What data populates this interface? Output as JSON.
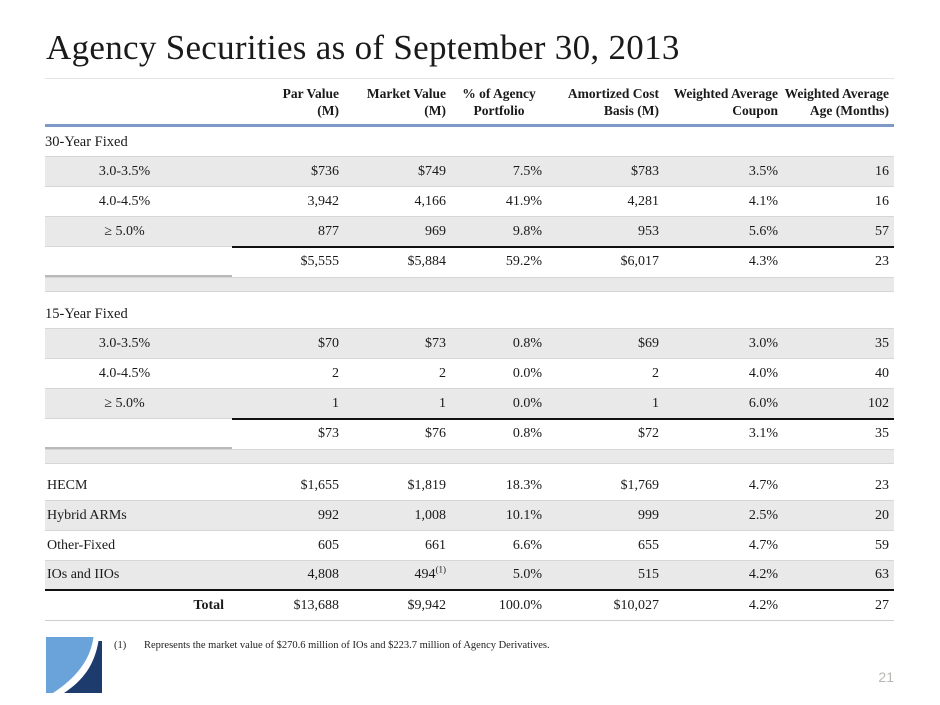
{
  "slide": {
    "title": "Agency Securities as of September 30, 2013",
    "page_number": "21",
    "footnote": {
      "marker": "(1)",
      "text": "Represents the market value of $270.6 million of IOs and $223.7 million of Agency Derivatives."
    }
  },
  "colors": {
    "header_rule": "#7d99c6",
    "row_shade": "#e9e9e9",
    "logo_light": "#69a3d9",
    "logo_dark": "#1d3c6d",
    "page_number_gray": "#b7b7b4"
  },
  "chart_data": {
    "type": "table",
    "title": "Agency Securities as of September 30, 2013",
    "headers": [
      "",
      "Par Value\n(M)",
      "Market Value\n(M)",
      "% of Agency\nPortfolio",
      "Amortized Cost\nBasis (M)",
      "Weighted Average\nCoupon",
      "Weighted Average\nAge (Months)"
    ],
    "rows": [
      {
        "type": "section",
        "label": "30-Year Fixed"
      },
      {
        "type": "data",
        "shade": true,
        "label": "3.0-3.5%",
        "label_align": "center",
        "cells": [
          "$736",
          "$749",
          "7.5%",
          "$783",
          "3.5%",
          "16"
        ]
      },
      {
        "type": "data",
        "shade": false,
        "label": "4.0-4.5%",
        "label_align": "center",
        "cells": [
          "3,942",
          "4,166",
          "41.9%",
          "4,281",
          "4.1%",
          "16"
        ]
      },
      {
        "type": "data",
        "shade": true,
        "label": "≥ 5.0%",
        "label_align": "center",
        "cells": [
          "877",
          "969",
          "9.8%",
          "953",
          "5.6%",
          "57"
        ],
        "rule": "black-values"
      },
      {
        "type": "subtotal",
        "label": "",
        "cells": [
          "$5,555",
          "$5,884",
          "59.2%",
          "$6,017",
          "4.3%",
          "23"
        ]
      },
      {
        "type": "spacer"
      },
      {
        "type": "section",
        "label": "15-Year Fixed"
      },
      {
        "type": "data",
        "shade": true,
        "label": "3.0-3.5%",
        "label_align": "center",
        "cells": [
          "$70",
          "$73",
          "0.8%",
          "$69",
          "3.0%",
          "35"
        ]
      },
      {
        "type": "data",
        "shade": false,
        "label": "4.0-4.5%",
        "label_align": "center",
        "cells": [
          "2",
          "2",
          "0.0%",
          "2",
          "4.0%",
          "40"
        ]
      },
      {
        "type": "data",
        "shade": true,
        "label": "≥ 5.0%",
        "label_align": "center",
        "cells": [
          "1",
          "1",
          "0.0%",
          "1",
          "6.0%",
          "102"
        ],
        "rule": "black-values"
      },
      {
        "type": "subtotal",
        "label": "",
        "cells": [
          "$73",
          "$76",
          "0.8%",
          "$72",
          "3.1%",
          "35"
        ]
      },
      {
        "type": "spacer"
      },
      {
        "type": "data",
        "shade": false,
        "label": "HECM",
        "label_align": "left",
        "cells": [
          "$1,655",
          "$1,819",
          "18.3%",
          "$1,769",
          "4.7%",
          "23"
        ]
      },
      {
        "type": "data",
        "shade": true,
        "label": "Hybrid ARMs",
        "label_align": "left",
        "cells": [
          "992",
          "1,008",
          "10.1%",
          "999",
          "2.5%",
          "20"
        ]
      },
      {
        "type": "data",
        "shade": false,
        "label": "Other-Fixed",
        "label_align": "left",
        "cells": [
          "605",
          "661",
          "6.6%",
          "655",
          "4.7%",
          "59"
        ]
      },
      {
        "type": "data",
        "shade": true,
        "label": "IOs and IIOs",
        "label_align": "left",
        "cells": [
          "4,808",
          {
            "v": "494",
            "sup": "(1)"
          },
          "5.0%",
          "515",
          "4.2%",
          "63"
        ],
        "rule": "black-full"
      },
      {
        "type": "total",
        "label": "Total",
        "label_align": "right",
        "cells": [
          "$13,688",
          "$9,942",
          "100.0%",
          "$10,027",
          "4.2%",
          "27"
        ]
      }
    ]
  }
}
